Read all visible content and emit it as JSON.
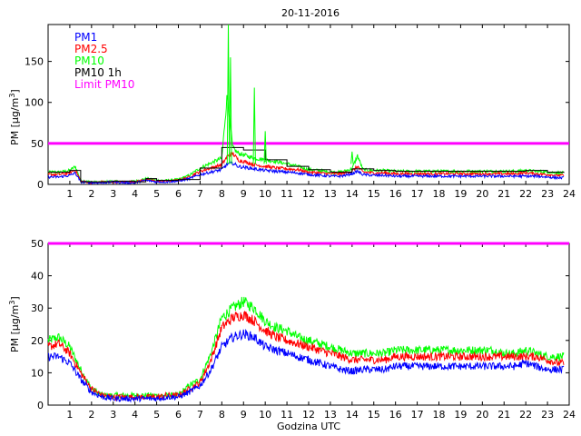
{
  "title": "20-11-2016",
  "colors": {
    "pm1": "#0000ff",
    "pm25": "#ff0000",
    "pm10": "#00ff00",
    "pm10_1h": "#000000",
    "limit": "#ff00ff"
  },
  "legend": [
    "PM1",
    "PM2.5",
    "PM10",
    "PM10 1h",
    "Limit PM10"
  ],
  "chart_data": [
    {
      "type": "line",
      "title": "20-11-2016",
      "xlabel": "",
      "ylabel": "PM [µg/m3]",
      "ylabel_main": "PM [µg/m",
      "ylabel_sup": "3",
      "ylabel_end": "]",
      "xlim": [
        0,
        24
      ],
      "ylim": [
        0,
        195
      ],
      "xticks": [
        1,
        2,
        3,
        4,
        5,
        6,
        7,
        8,
        9,
        10,
        11,
        12,
        13,
        14,
        15,
        16,
        17,
        18,
        19,
        20,
        21,
        22,
        23,
        24
      ],
      "yticks": [
        0,
        50,
        100,
        150
      ],
      "limit_pm10": 50,
      "x": [
        0.0,
        0.5,
        1.0,
        1.25,
        1.5,
        2.0,
        2.5,
        3.0,
        3.5,
        4.0,
        4.5,
        5.0,
        5.5,
        6.0,
        6.5,
        7.0,
        7.5,
        8.0,
        8.25,
        8.5,
        8.75,
        9.0,
        9.25,
        9.5,
        10.0,
        10.5,
        11.0,
        11.5,
        12.0,
        12.5,
        13.0,
        13.5,
        14.0,
        14.25,
        14.5,
        15.0,
        15.5,
        16.0,
        16.5,
        17.0,
        17.5,
        18.0,
        18.5,
        19.0,
        19.5,
        20.0,
        20.5,
        21.0,
        21.5,
        22.0,
        22.5,
        23.0,
        23.5,
        23.75
      ],
      "series": [
        {
          "name": "PM1",
          "values": [
            9,
            9,
            11,
            14,
            3,
            2,
            2,
            3,
            2,
            2,
            5,
            3,
            3,
            4,
            7,
            12,
            15,
            18,
            25,
            26,
            22,
            21,
            20,
            19,
            17,
            16,
            15,
            14,
            12,
            11,
            10,
            10,
            13,
            16,
            12,
            11,
            11,
            10,
            10,
            10,
            10,
            10,
            10,
            10,
            10,
            10,
            10,
            10,
            10,
            10,
            10,
            9,
            8,
            8
          ]
        },
        {
          "name": "PM2.5",
          "values": [
            12,
            12,
            14,
            18,
            4,
            2,
            3,
            3,
            3,
            3,
            6,
            4,
            4,
            5,
            9,
            16,
            20,
            24,
            34,
            38,
            30,
            28,
            26,
            24,
            22,
            20,
            19,
            18,
            15,
            14,
            13,
            13,
            16,
            22,
            15,
            14,
            14,
            13,
            13,
            13,
            13,
            13,
            13,
            13,
            13,
            13,
            13,
            13,
            13,
            14,
            13,
            12,
            11,
            11
          ]
        },
        {
          "name": "PM10",
          "values": [
            15,
            15,
            17,
            22,
            5,
            3,
            3,
            4,
            3,
            4,
            7,
            5,
            5,
            6,
            11,
            20,
            26,
            32,
            110,
            45,
            38,
            36,
            34,
            32,
            30,
            28,
            25,
            22,
            18,
            17,
            15,
            15,
            19,
            35,
            18,
            17,
            17,
            16,
            16,
            16,
            16,
            16,
            16,
            16,
            16,
            16,
            16,
            16,
            16,
            17,
            16,
            15,
            14,
            14
          ]
        },
        {
          "name": "PM10 1h",
          "steps": [
            [
              0,
              15
            ],
            [
              1,
              17
            ],
            [
              1.5,
              3
            ],
            [
              2,
              3
            ],
            [
              3,
              4
            ],
            [
              4,
              3
            ],
            [
              4.5,
              7
            ],
            [
              5,
              5
            ],
            [
              5.5,
              5
            ],
            [
              6,
              6
            ],
            [
              7,
              20
            ],
            [
              8,
              45
            ],
            [
              8.5,
              45
            ],
            [
              9,
              42
            ],
            [
              10,
              30
            ],
            [
              11,
              22
            ],
            [
              12,
              18
            ],
            [
              13,
              15
            ],
            [
              14,
              19
            ],
            [
              15,
              17
            ],
            [
              16,
              16
            ],
            [
              17,
              16
            ],
            [
              18,
              16
            ],
            [
              19,
              16
            ],
            [
              20,
              16
            ],
            [
              21,
              16
            ],
            [
              22,
              17
            ],
            [
              23,
              15
            ],
            [
              23.75,
              14
            ]
          ]
        }
      ],
      "spikes": [
        {
          "x": 8.3,
          "y": 195
        },
        {
          "x": 8.4,
          "y": 155
        },
        {
          "x": 9.5,
          "y": 118
        },
        {
          "x": 10.0,
          "y": 65
        },
        {
          "x": 14.0,
          "y": 40
        }
      ]
    },
    {
      "type": "line",
      "title": "",
      "xlabel": "Godzina UTC",
      "ylabel": "PM [µg/m3]",
      "ylabel_main": "PM [µg/m",
      "ylabel_sup": "3",
      "ylabel_end": "]",
      "xlim": [
        0,
        24
      ],
      "ylim": [
        0,
        50
      ],
      "xticks": [
        1,
        2,
        3,
        4,
        5,
        6,
        7,
        8,
        9,
        10,
        11,
        12,
        13,
        14,
        15,
        16,
        17,
        18,
        19,
        20,
        21,
        22,
        23,
        24
      ],
      "yticks": [
        0,
        10,
        20,
        30,
        40,
        50
      ],
      "limit_pm10": 50,
      "x": [
        0.0,
        0.5,
        1.0,
        1.5,
        2.0,
        2.5,
        3.0,
        3.5,
        4.0,
        4.5,
        5.0,
        5.5,
        6.0,
        6.5,
        7.0,
        7.5,
        8.0,
        8.5,
        9.0,
        9.5,
        10.0,
        10.5,
        11.0,
        11.5,
        12.0,
        12.5,
        13.0,
        13.5,
        14.0,
        14.5,
        15.0,
        15.5,
        16.0,
        16.5,
        17.0,
        17.5,
        18.0,
        18.5,
        19.0,
        19.5,
        20.0,
        20.5,
        21.0,
        21.5,
        22.0,
        22.5,
        23.0,
        23.5,
        23.75
      ],
      "series": [
        {
          "name": "PM1",
          "values": [
            15,
            15,
            13,
            8,
            4,
            2.5,
            2,
            2,
            2,
            2,
            2,
            2.5,
            2.5,
            4,
            6,
            11,
            18,
            21,
            22,
            21,
            18,
            17,
            16,
            15,
            14,
            13,
            12,
            11,
            10.5,
            11,
            11,
            11,
            12,
            12,
            12,
            12,
            12,
            12,
            12,
            12,
            12,
            12,
            12,
            12,
            13,
            12,
            11,
            11,
            11
          ]
        },
        {
          "name": "PM2.5",
          "values": [
            18,
            19,
            16,
            10,
            5,
            3,
            2.5,
            2.5,
            2.5,
            2.5,
            2.5,
            3,
            3,
            5,
            7,
            14,
            24,
            27,
            28,
            26,
            23,
            21,
            20,
            19,
            18,
            17,
            16,
            15,
            14,
            14,
            14,
            14,
            15,
            15,
            15,
            15,
            15,
            15,
            15,
            15,
            15,
            15,
            15,
            15,
            15,
            15,
            14,
            13,
            13
          ]
        },
        {
          "name": "PM10",
          "values": [
            20,
            21,
            18,
            11,
            5,
            3,
            3,
            3,
            3,
            3,
            3,
            3,
            3,
            6,
            8,
            16,
            27,
            30,
            32,
            30,
            26,
            24,
            23,
            21,
            20,
            19,
            18,
            17,
            16,
            16,
            16,
            16,
            17,
            17,
            17,
            17,
            17,
            17,
            17,
            17,
            17,
            17,
            16,
            16,
            17,
            16,
            15,
            15,
            15
          ]
        }
      ]
    }
  ]
}
